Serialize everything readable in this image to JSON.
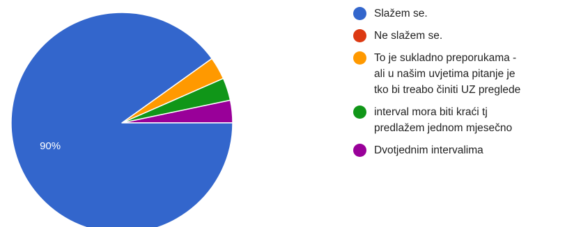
{
  "chart_data": {
    "type": "pie",
    "title": "",
    "categories": [
      "Slažem se.",
      "Ne slažem se.",
      "To je sukladno preporukama - ali u našim uvjetima pitanje je tko bi treabo činiti UZ preglede",
      "interval mora biti kraći tj predlažem jednom mjesečno",
      "Dvotjednim intervalima"
    ],
    "values": [
      90,
      0,
      3.3,
      3.3,
      3.3
    ],
    "colors": [
      "#3366cc",
      "#dc3912",
      "#ff9900",
      "#109618",
      "#990099"
    ],
    "data_labels": [
      "90%",
      "",
      "",
      "",
      ""
    ],
    "legend_position": "right"
  },
  "legend": {
    "items": [
      {
        "lines": [
          "Slažem se."
        ]
      },
      {
        "lines": [
          "Ne slažem se."
        ]
      },
      {
        "lines": [
          "To je sukladno preporukama -",
          "ali u našim uvjetima pitanje je",
          "tko bi treabo činiti UZ preglede"
        ]
      },
      {
        "lines": [
          "interval mora biti kraći tj",
          "predlažem jednom mjesečno"
        ]
      },
      {
        "lines": [
          "Dvotjednim intervalima"
        ]
      }
    ]
  }
}
